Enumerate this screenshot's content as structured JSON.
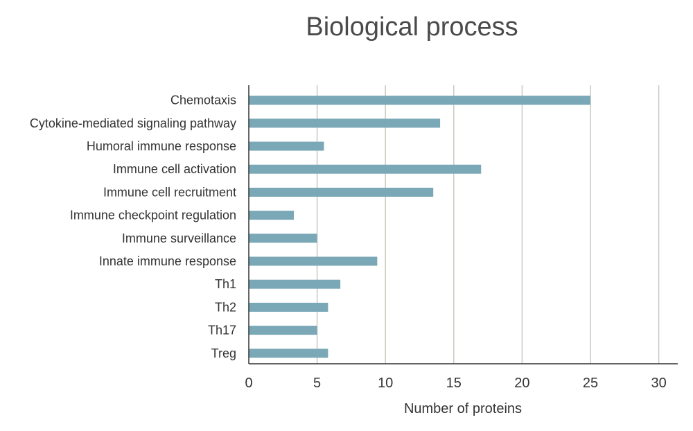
{
  "chart_data": {
    "type": "bar",
    "orientation": "horizontal",
    "title": "Biological process",
    "xlabel": "Number of proteins",
    "ylabel": "",
    "categories": [
      "Chemotaxis",
      "Cytokine-mediated signaling pathway",
      "Humoral immune response",
      "Immune cell activation",
      "Immune cell recruitment",
      "Immune checkpoint regulation",
      "Immune surveillance",
      "Innate immune response",
      "Th1",
      "Th2",
      "Th17",
      "Treg"
    ],
    "values": [
      25,
      14,
      5.5,
      17,
      13.5,
      3.3,
      5,
      9.4,
      6.7,
      5.8,
      5,
      5.8
    ],
    "xlim": [
      0,
      31.5
    ],
    "xticks": [
      "0",
      "5",
      "10",
      "15",
      "20",
      "25",
      "30"
    ],
    "grid": "vertical",
    "legend": "none",
    "colors": {
      "bar": "#7aa8b7",
      "grid": "#c9c9c0",
      "axis": "#333333"
    }
  }
}
